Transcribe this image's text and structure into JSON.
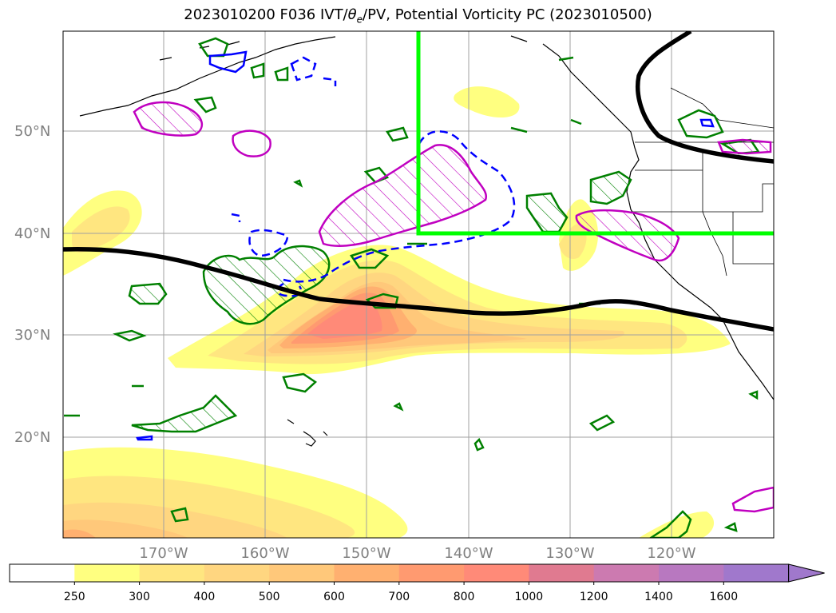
{
  "title": "2023010200 F036 IVT/θe/PV, Potential Vorticity PC (2023010500)",
  "title_parts": {
    "prefix": "2023010200 F036 IVT/",
    "theta": "θ",
    "sub": "e",
    "suffix": "/PV, Potential Vorticity PC (2023010500)"
  },
  "lat_labels": [
    "50°N",
    "40°N",
    "30°N",
    "20°N"
  ],
  "lon_labels": [
    "170°W",
    "160°W",
    "150°W",
    "140°W",
    "130°W",
    "120°W"
  ],
  "colorbar": {
    "ticks": [
      "250",
      "300",
      "400",
      "500",
      "600",
      "700",
      "800",
      "1000",
      "1200",
      "1400",
      "1600"
    ],
    "colors": [
      "#ffffff",
      "#ffff80",
      "#ffe680",
      "#ffd680",
      "#ffc87a",
      "#ffb070",
      "#ff9a70",
      "#ff8a78",
      "#e07a90",
      "#cc7ab0",
      "#b878c0",
      "#a078cc"
    ]
  },
  "colors": {
    "green_box": "#00ff00",
    "jet_line": "#000000",
    "pv_green": "#008000",
    "pv_magenta": "#c000c0",
    "pv_blue": "#0000ff"
  }
}
